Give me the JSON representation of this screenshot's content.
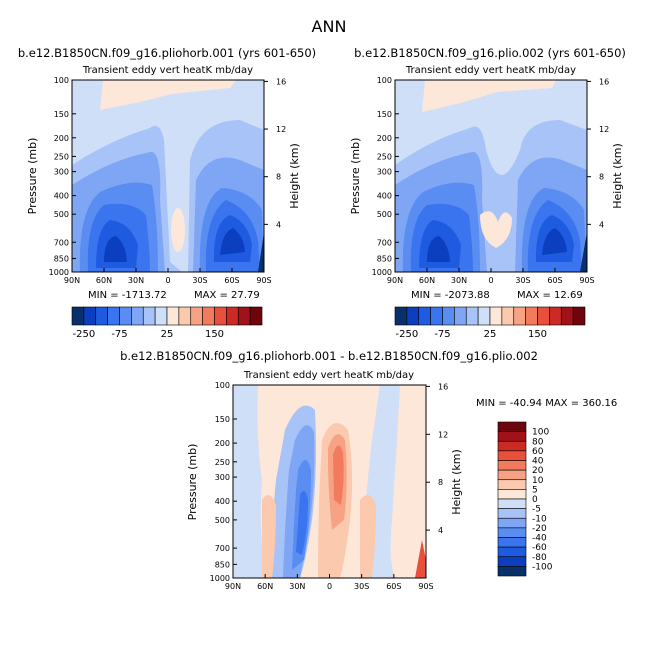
{
  "page_title": "ANN",
  "colors": {
    "diverging_scale": [
      "#08306b",
      "#0c3fbf",
      "#1f5be0",
      "#3a74ee",
      "#5a8df2",
      "#7fa6f5",
      "#a8c3f8",
      "#cfdff8",
      "#fde7d9",
      "#fbc9ae",
      "#f7a283",
      "#f27a5d",
      "#e8503c",
      "#cc2a24",
      "#a11218",
      "#6e050c"
    ]
  },
  "chart_data": [
    {
      "type": "heatmap",
      "title": "b.e12.B1850CN.f09_g16.pliohorb.001 (yrs 601-650)",
      "subtitle": "Transient eddy vert heatK mb/day",
      "xlabel": "",
      "ylabel": "Pressure (mb)",
      "y2label": "Height (km)",
      "x_ticks": [
        "90N",
        "60N",
        "30N",
        "0",
        "30S",
        "60S",
        "90S"
      ],
      "y_ticks": [
        "100",
        "150",
        "200",
        "250",
        "300",
        "400",
        "500",
        "700",
        "850",
        "1000"
      ],
      "y2_ticks": [
        "16",
        "12",
        "8",
        "4"
      ],
      "min_label": "MIN = -1713.72",
      "max_label": "MAX =   27.79",
      "min": -1713.72,
      "max": 27.79,
      "colorbar_ticks": [
        "-250",
        "-75",
        "25",
        "150"
      ]
    },
    {
      "type": "heatmap",
      "title": "b.e12.B1850CN.f09_g16.plio.002 (yrs 601-650)",
      "subtitle": "Transient eddy vert heatK mb/day",
      "xlabel": "",
      "ylabel": "Pressure (mb)",
      "y2label": "Height (km)",
      "x_ticks": [
        "90N",
        "60N",
        "30N",
        "0",
        "30S",
        "60S",
        "90S"
      ],
      "y_ticks": [
        "100",
        "150",
        "200",
        "250",
        "300",
        "400",
        "500",
        "700",
        "850",
        "1000"
      ],
      "y2_ticks": [
        "16",
        "12",
        "8",
        "4"
      ],
      "min_label": "MIN = -2073.88",
      "max_label": "MAX =   12.69",
      "min": -2073.88,
      "max": 12.69,
      "colorbar_ticks": [
        "-250",
        "-75",
        "25",
        "150"
      ]
    },
    {
      "type": "heatmap",
      "title": "b.e12.B1850CN.f09_g16.pliohorb.001 - b.e12.B1850CN.f09_g16.plio.002",
      "subtitle": "Transient eddy vert heatK mb/day",
      "xlabel": "",
      "ylabel": "Pressure (mb)",
      "y2label": "Height (km)",
      "x_ticks": [
        "90N",
        "60N",
        "30N",
        "0",
        "30S",
        "60S",
        "90S"
      ],
      "y_ticks": [
        "100",
        "150",
        "200",
        "250",
        "300",
        "400",
        "500",
        "700",
        "850",
        "1000"
      ],
      "y2_ticks": [
        "16",
        "12",
        "8",
        "4"
      ],
      "minmax_label": "MIN = -40.94   MAX = 360.16",
      "min": -40.94,
      "max": 360.16,
      "colorbar_levels": [
        "100",
        "80",
        "60",
        "40",
        "20",
        "10",
        "5",
        "0",
        "-5",
        "-10",
        "-20",
        "-40",
        "-60",
        "-80",
        "-100"
      ]
    }
  ]
}
